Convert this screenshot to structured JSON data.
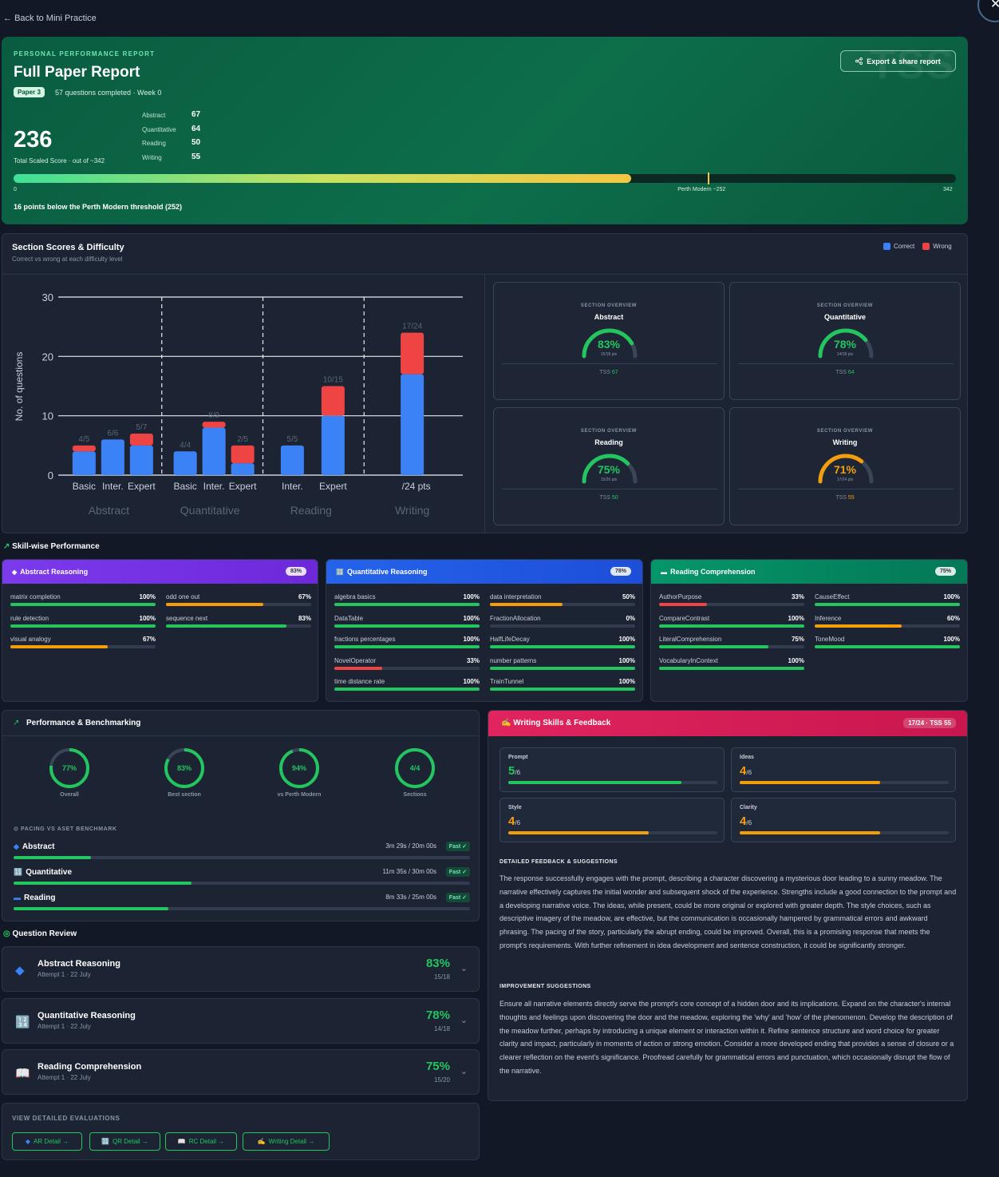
{
  "nav": {
    "back_label": "Back to Mini Practice",
    "close_label": "✕"
  },
  "hero": {
    "kicker": "PERSONAL PERFORMANCE REPORT",
    "title": "Full Paper Report",
    "paper_badge": "Paper 3",
    "questions_completed": "57 questions completed · Week 0",
    "total_score": "236",
    "total_label": "Total Scaled Score · out of ~342",
    "export_label": "Export & share report",
    "watermark": "TSS",
    "sections": [
      {
        "name": "Abstract",
        "value": "67"
      },
      {
        "name": "Quantitative",
        "value": "64"
      },
      {
        "name": "Reading",
        "value": "50"
      },
      {
        "name": "Writing",
        "value": "55"
      }
    ],
    "progress": {
      "score": 236,
      "max": 342,
      "threshold": 252,
      "tick_min": "0",
      "tick_threshold": "Perth Modern ~252",
      "tick_max": "342",
      "colors": [
        "#3ee098",
        "#c7e15e",
        "#f5c542"
      ]
    },
    "below_threshold": "16 points below the Perth Modern threshold (252)"
  },
  "section_scores": {
    "title": "Section Scores & Difficulty",
    "subtitle": "Correct vs wrong at each difficulty level",
    "legend": [
      {
        "label": "Correct",
        "color": "#3b82f6"
      },
      {
        "label": "Wrong",
        "color": "#ef4444"
      }
    ]
  },
  "chart_data": {
    "type": "bar",
    "stacked": true,
    "ylabel": "No. of questions",
    "ylim": [
      0,
      30
    ],
    "yticks": [
      0,
      10,
      20,
      30
    ],
    "grid": true,
    "categories": [
      "Basic",
      "Inter.",
      "Expert",
      "Basic",
      "Inter.",
      "Expert",
      "Inter.",
      "Expert",
      "/24 pts"
    ],
    "groups": [
      {
        "name": "Abstract",
        "indices": [
          0,
          1,
          2
        ]
      },
      {
        "name": "Quantitative",
        "indices": [
          3,
          4,
          5
        ]
      },
      {
        "name": "Reading",
        "indices": [
          6,
          7
        ]
      },
      {
        "name": "Writing",
        "indices": [
          8
        ]
      }
    ],
    "series": [
      {
        "name": "Correct",
        "color": "#3b82f6",
        "values": [
          4,
          6,
          5,
          4,
          8,
          2,
          5,
          10,
          17
        ]
      },
      {
        "name": "Wrong",
        "color": "#ef4444",
        "values": [
          1,
          0,
          2,
          0,
          1,
          3,
          0,
          5,
          7
        ]
      }
    ],
    "data_labels": [
      "4/5",
      "6/6",
      "5/7",
      "4/4",
      "8/9",
      "2/5",
      "5/5",
      "10/15",
      "17/24"
    ]
  },
  "overviews": [
    {
      "kicker": "SECTION OVERVIEW",
      "name": "Abstract",
      "pct": "83%",
      "fraction": 0.83,
      "pts": "15/18 pts",
      "tss": "TSS",
      "tss_value": "67",
      "color": "#22c55e"
    },
    {
      "kicker": "SECTION OVERVIEW",
      "name": "Quantitative",
      "pct": "78%",
      "fraction": 0.78,
      "pts": "14/18 pts",
      "tss": "TSS",
      "tss_value": "64",
      "color": "#22c55e"
    },
    {
      "kicker": "SECTION OVERVIEW",
      "name": "Reading",
      "pct": "75%",
      "fraction": 0.75,
      "pts": "15/20 pts",
      "tss": "TSS",
      "tss_value": "50",
      "color": "#22c55e"
    },
    {
      "kicker": "SECTION OVERVIEW",
      "name": "Writing",
      "pct": "71%",
      "fraction": 0.71,
      "pts": "17/24 pts",
      "tss": "TSS",
      "tss_value": "55",
      "color": "#f59e0b"
    }
  ],
  "skills": {
    "title": "Skill-wise Performance",
    "panels": [
      {
        "name": "Abstract Reasoning",
        "icon": "diamond-icon",
        "glyph": "◆",
        "badge": "83%",
        "gradient": [
          "#7c3aed",
          "#6d28d9"
        ],
        "items": [
          {
            "label": "matrix completion",
            "value": "100%",
            "fraction": 1.0,
            "color": "#22c55e"
          },
          {
            "label": "odd one out",
            "value": "67%",
            "fraction": 0.67,
            "color": "#f59e0b"
          },
          {
            "label": "rule detection",
            "value": "100%",
            "fraction": 1.0,
            "color": "#22c55e"
          },
          {
            "label": "sequence next",
            "value": "83%",
            "fraction": 0.83,
            "color": "#22c55e"
          },
          {
            "label": "visual analogy",
            "value": "67%",
            "fraction": 0.67,
            "color": "#f59e0b"
          }
        ]
      },
      {
        "name": "Quantitative Reasoning",
        "icon": "numbers-icon",
        "glyph": "🔢",
        "badge": "78%",
        "gradient": [
          "#2563eb",
          "#1d4ed8"
        ],
        "items": [
          {
            "label": "algebra basics",
            "value": "100%",
            "fraction": 1.0,
            "color": "#22c55e"
          },
          {
            "label": "data interpretation",
            "value": "50%",
            "fraction": 0.5,
            "color": "#f59e0b"
          },
          {
            "label": "DataTable",
            "value": "100%",
            "fraction": 1.0,
            "color": "#22c55e"
          },
          {
            "label": "FractionAllocation",
            "value": "0%",
            "fraction": 0.0,
            "color": "#ef4444"
          },
          {
            "label": "fractions percentages",
            "value": "100%",
            "fraction": 1.0,
            "color": "#22c55e"
          },
          {
            "label": "HalfLifeDecay",
            "value": "100%",
            "fraction": 1.0,
            "color": "#22c55e"
          },
          {
            "label": "NovelOperator",
            "value": "33%",
            "fraction": 0.33,
            "color": "#ef4444"
          },
          {
            "label": "number patterns",
            "value": "100%",
            "fraction": 1.0,
            "color": "#22c55e"
          },
          {
            "label": "time distance rate",
            "value": "100%",
            "fraction": 1.0,
            "color": "#22c55e"
          },
          {
            "label": "TrainTunnel",
            "value": "100%",
            "fraction": 1.0,
            "color": "#22c55e"
          }
        ]
      },
      {
        "name": "Reading Comprehension",
        "icon": "book-icon",
        "glyph": "▬",
        "badge": "75%",
        "gradient": [
          "#059669",
          "#047857"
        ],
        "items": [
          {
            "label": "AuthorPurpose",
            "value": "33%",
            "fraction": 0.33,
            "color": "#ef4444"
          },
          {
            "label": "CauseEffect",
            "value": "100%",
            "fraction": 1.0,
            "color": "#22c55e"
          },
          {
            "label": "CompareContrast",
            "value": "100%",
            "fraction": 1.0,
            "color": "#22c55e"
          },
          {
            "label": "Inference",
            "value": "60%",
            "fraction": 0.6,
            "color": "#f59e0b"
          },
          {
            "label": "LiteralComprehension",
            "value": "75%",
            "fraction": 0.75,
            "color": "#22c55e"
          },
          {
            "label": "ToneMood",
            "value": "100%",
            "fraction": 1.0,
            "color": "#22c55e"
          },
          {
            "label": "VocabularyInContext",
            "value": "100%",
            "fraction": 1.0,
            "color": "#22c55e"
          }
        ]
      }
    ]
  },
  "benchmark": {
    "title": "Performance & Benchmarking",
    "rings": [
      {
        "value": "77%",
        "label": "Overall",
        "fraction": 0.77
      },
      {
        "value": "83%",
        "label": "Best section",
        "fraction": 0.83
      },
      {
        "value": "94%",
        "label": "vs Perth Modern",
        "fraction": 0.94
      },
      {
        "value": "4/4",
        "label": "Sections",
        "fraction": 1.0
      }
    ],
    "pacing_title": "PACING VS ASET BENCHMARK",
    "pacing": [
      {
        "name": "Abstract",
        "icon": "diamond-icon",
        "glyph": "◆",
        "time": "3m 29s / 20m 00s",
        "badge": "Fast ✓",
        "fraction": 0.17
      },
      {
        "name": "Quantitative",
        "icon": "numbers-icon",
        "glyph": "🔢",
        "time": "11m 35s / 30m 00s",
        "badge": "Fast ✓",
        "fraction": 0.39
      },
      {
        "name": "Reading",
        "icon": "book-icon",
        "glyph": "▬",
        "time": "8m 33s / 25m 00s",
        "badge": "Fast ✓",
        "fraction": 0.34
      }
    ]
  },
  "question_review": {
    "title": "Question Review",
    "items": [
      {
        "name": "Abstract Reasoning",
        "attempt": "Attempt 1 · 22 July",
        "pct": "83%",
        "score": "15/18",
        "icon": "diamond-icon",
        "glyph": "◆",
        "color": "#3b82f6"
      },
      {
        "name": "Quantitative Reasoning",
        "attempt": "Attempt 1 · 22 July",
        "pct": "78%",
        "score": "14/18",
        "icon": "numbers-icon",
        "glyph": "🔢",
        "color": "#3b82f6"
      },
      {
        "name": "Reading Comprehension",
        "attempt": "Attempt 1 · 22 July",
        "pct": "75%",
        "score": "15/20",
        "icon": "book-icon",
        "glyph": "📖",
        "color": "#e6e9ef"
      }
    ]
  },
  "detailed": {
    "title": "VIEW DETAILED EVALUATIONS",
    "links": [
      {
        "label": "AR Detail →",
        "glyph": "◆"
      },
      {
        "label": "QR Detail →",
        "glyph": "🔢"
      },
      {
        "label": "RC Detail →",
        "glyph": "📖"
      },
      {
        "label": "Writing Detail →",
        "glyph": "✍"
      }
    ]
  },
  "writing": {
    "title": "Writing Skills & Feedback",
    "badge": "17/24 · TSS 55",
    "scores": [
      {
        "name": "Prompt",
        "value": "5",
        "max": "/6",
        "fraction": 0.83,
        "color": "#22c55e"
      },
      {
        "name": "Ideas",
        "value": "4",
        "max": "/6",
        "fraction": 0.67,
        "color": "#f59e0b"
      },
      {
        "name": "Style",
        "value": "4",
        "max": "/6",
        "fraction": 0.67,
        "color": "#f59e0b"
      },
      {
        "name": "Clarity",
        "value": "4",
        "max": "/6",
        "fraction": 0.67,
        "color": "#f59e0b"
      }
    ],
    "feedback_title": "DETAILED FEEDBACK & SUGGESTIONS",
    "feedback": "The response successfully engages with the prompt, describing a character discovering a mysterious door leading to a sunny meadow. The narrative effectively captures the initial wonder and subsequent shock of the experience. Strengths include a good connection to the prompt and a developing narrative voice. The ideas, while present, could be more original or explored with greater depth. The style choices, such as descriptive imagery of the meadow, are effective, but the communication is occasionally hampered by grammatical errors and awkward phrasing. The pacing of the story, particularly the abrupt ending, could be improved. Overall, this is a promising response that meets the prompt's requirements. With further refinement in idea development and sentence construction, it could be significantly stronger.",
    "improve_title": "IMPROVEMENT SUGGESTIONS",
    "improve": "Ensure all narrative elements directly serve the prompt's core concept of a hidden door and its implications. Expand on the character's internal thoughts and feelings upon discovering the door and the meadow, exploring the 'why' and 'how' of the phenomenon. Develop the description of the meadow further, perhaps by introducing a unique element or interaction within it. Refine sentence structure and word choice for greater clarity and impact, particularly in moments of action or strong emotion. Consider a more developed ending that provides a sense of closure or a clearer reflection on the event's significance. Proofread carefully for grammatical errors and punctuation, which occasionally disrupt the flow of the narrative."
  }
}
